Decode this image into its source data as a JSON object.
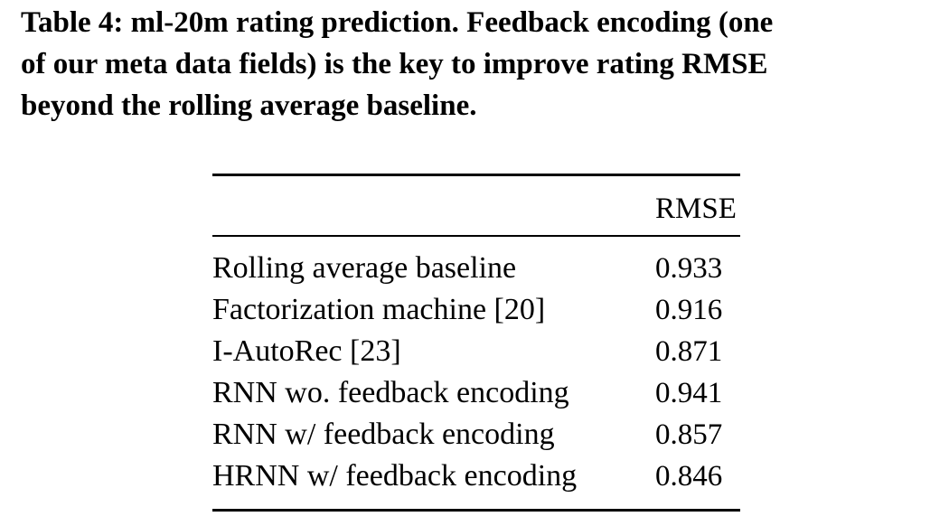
{
  "caption": {
    "lines": [
      "Table 4: ml-20m rating prediction. Feedback encoding (one",
      "of our meta data fields) is the key to improve rating RMSE",
      "beyond the rolling average baseline."
    ]
  },
  "table": {
    "header": {
      "method": "",
      "metric": "RMSE"
    },
    "rows": [
      {
        "method": "Rolling average baseline",
        "rmse": "0.933"
      },
      {
        "method": "Factorization machine [20]",
        "rmse": "0.916"
      },
      {
        "method": "I-AutoRec [23]",
        "rmse": "0.871"
      },
      {
        "method": "RNN wo. feedback encoding",
        "rmse": "0.941"
      },
      {
        "method": "RNN w/ feedback encoding",
        "rmse": "0.857"
      },
      {
        "method": "HRNN w/ feedback encoding",
        "rmse": "0.846"
      }
    ]
  }
}
